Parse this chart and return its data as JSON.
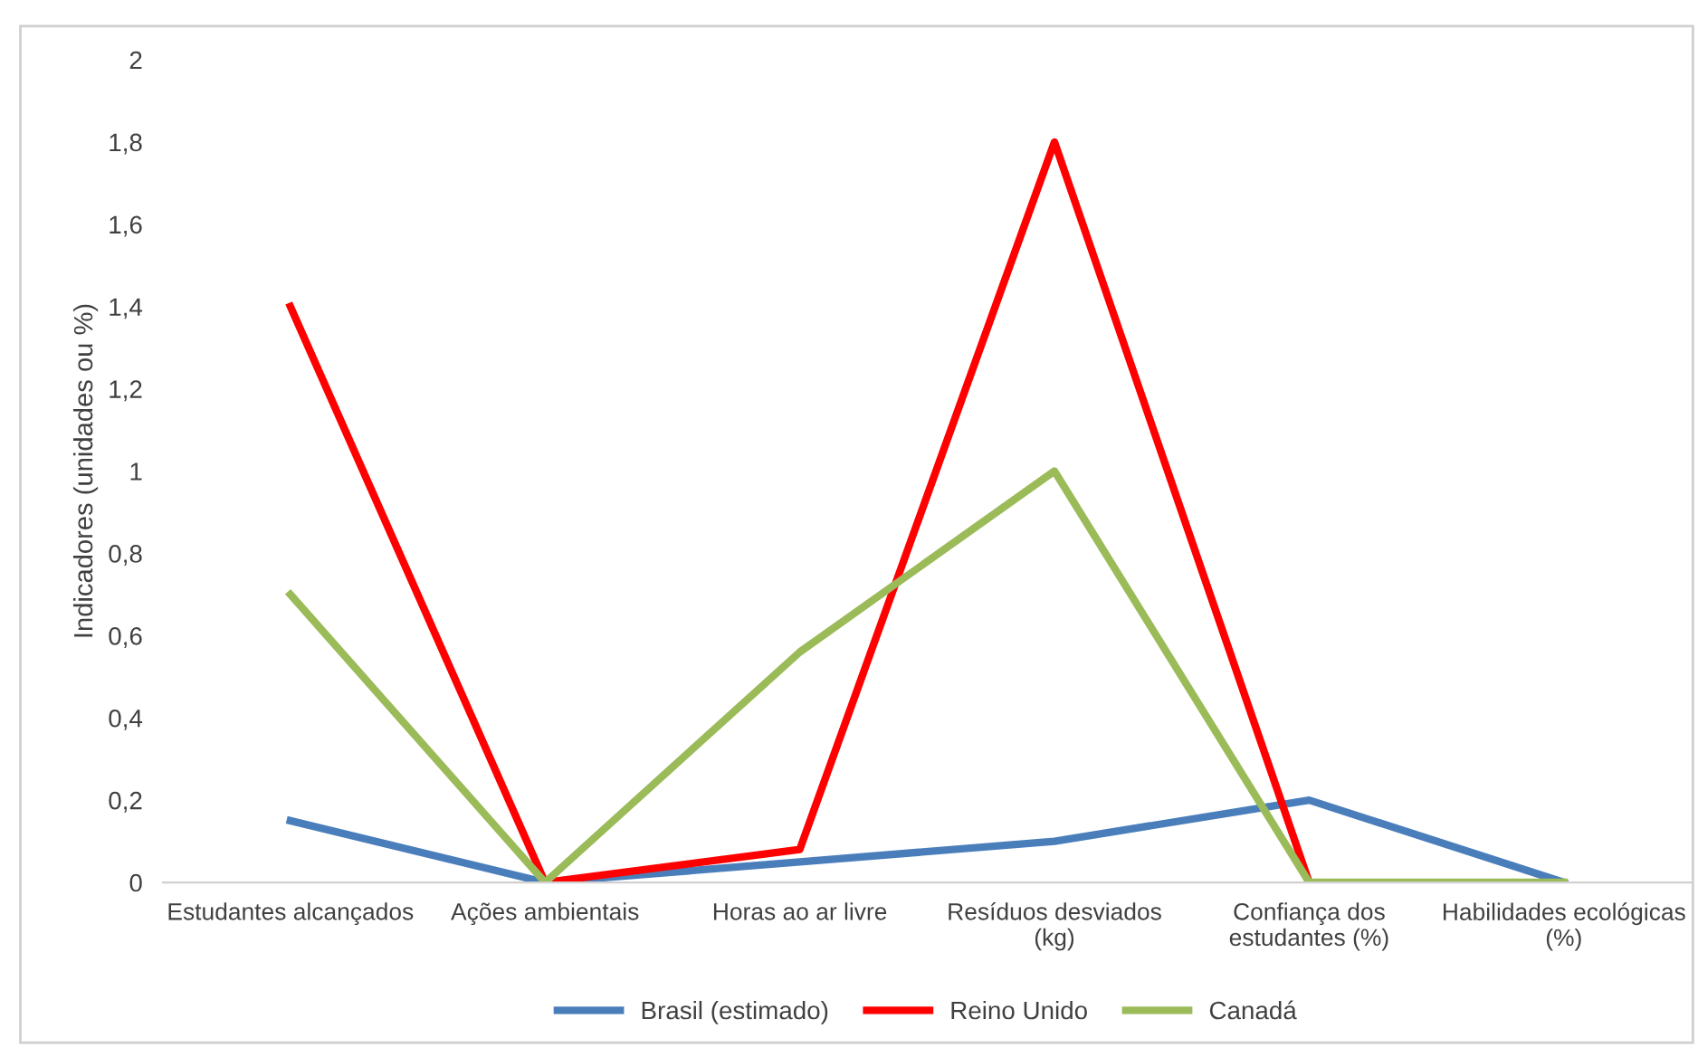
{
  "chart_data": {
    "type": "line",
    "ylabel": "Indicadores (unidades ou %)",
    "categories": [
      "Estudantes alcançados",
      "Ações ambientais",
      "Horas ao ar livre",
      "Resíduos desviados\n(kg)",
      "Confiança dos\nestudantes (%)",
      "Habilidades ecológicas\n(%)"
    ],
    "series": [
      {
        "name": "Brasil (estimado)",
        "color": "#4a7ebb",
        "values": [
          0.15,
          0,
          0.05,
          0.1,
          0.2,
          0
        ]
      },
      {
        "name": "Reino Unido",
        "color": "#ff0000",
        "values": [
          1.4,
          0,
          0.08,
          1.8,
          0,
          null
        ]
      },
      {
        "name": "Canadá",
        "color": "#9bbb59",
        "values": [
          0.7,
          0,
          0.56,
          1.0,
          0,
          0
        ]
      }
    ],
    "ylim": [
      0,
      2
    ],
    "yticks": [
      0,
      {
        "value": 0.2,
        "label": "0,2"
      },
      {
        "value": 0.4,
        "label": "0,4"
      },
      {
        "value": 0.6,
        "label": "0,6"
      },
      {
        "value": 0.8,
        "label": "0,8"
      },
      1,
      {
        "value": 1.2,
        "label": "1,2"
      },
      {
        "value": 1.4,
        "label": "1,4"
      },
      {
        "value": 1.6,
        "label": "1,6"
      },
      {
        "value": 1.8,
        "label": "1,8"
      },
      2
    ],
    "grid": false,
    "legend": "bottom",
    "marker": "none",
    "line_style": "solid"
  }
}
